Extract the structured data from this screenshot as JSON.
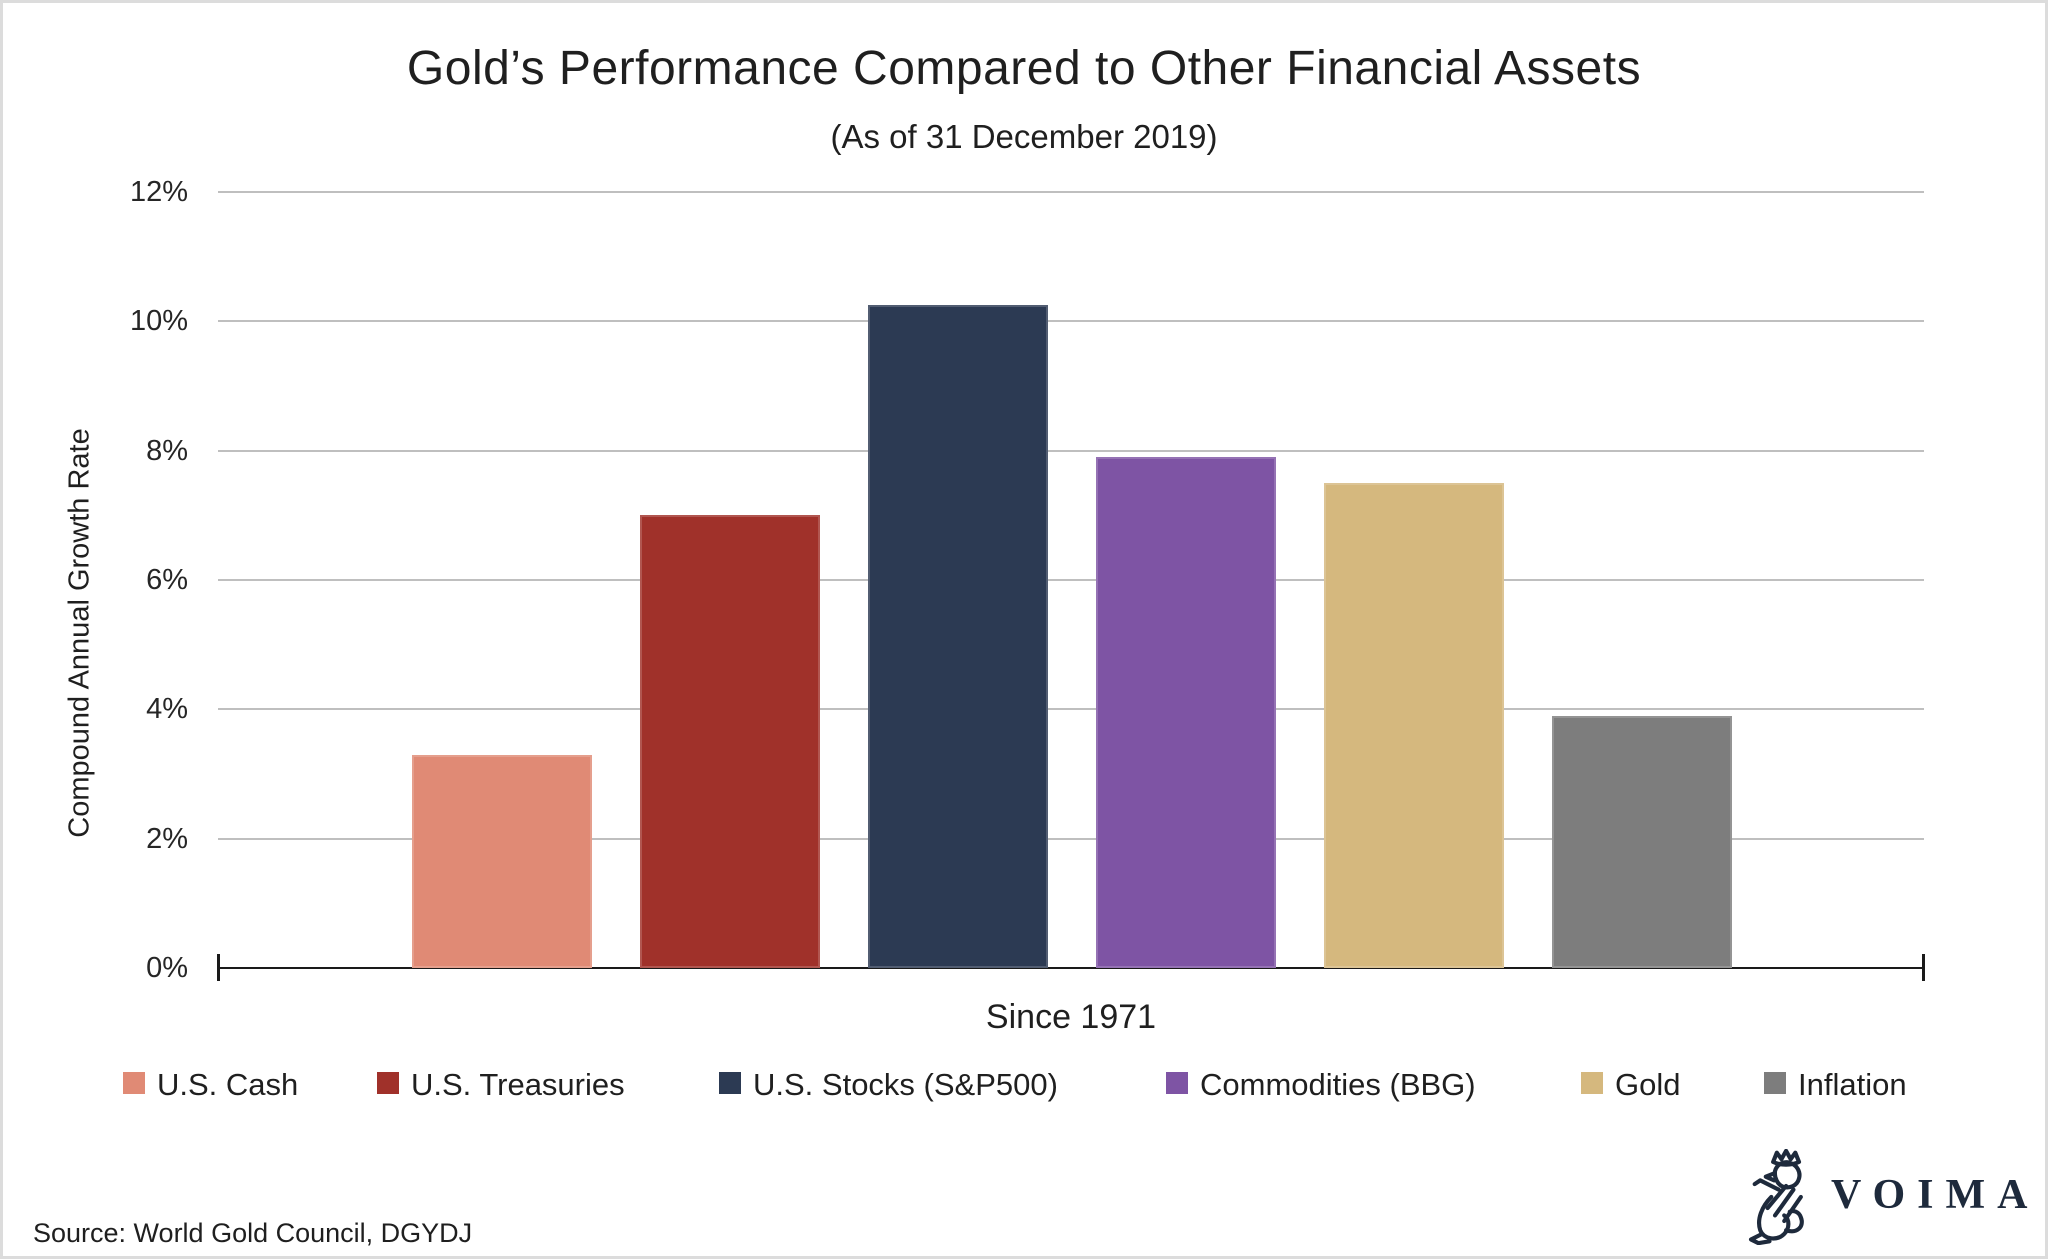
{
  "chart_data": {
    "type": "bar",
    "title": "Gold’s Performance Compared to Other Financial Assets",
    "subtitle": "(As of 31 December 2019)",
    "xlabel": "Since 1971",
    "ylabel": "Compound Annual Growth Rate",
    "ylim": [
      0,
      12
    ],
    "grid": true,
    "legend_position": "bottom",
    "yticks": [
      {
        "value": 12,
        "label": "12%"
      },
      {
        "value": 10,
        "label": "10%"
      },
      {
        "value": 8,
        "label": "8%"
      },
      {
        "value": 6,
        "label": "6%"
      },
      {
        "value": 4,
        "label": "4%"
      },
      {
        "value": 2,
        "label": "2%"
      },
      {
        "value": 0,
        "label": "0%"
      }
    ],
    "categories": [
      "U.S. Cash",
      "U.S. Treasuries",
      "U.S. Stocks (S&P500)",
      "Commodities (BBG)",
      "Gold",
      "Inflation"
    ],
    "values": [
      3.3,
      7.0,
      10.25,
      7.9,
      7.5,
      3.9
    ],
    "colors": [
      "#E08A75",
      "#A0312A",
      "#2C3A53",
      "#7E54A4",
      "#D5B87E",
      "#7D7D7D"
    ]
  },
  "colors": {
    "gridline": "#bfbfbf",
    "axis": "#1a1a1a",
    "brand_navy": "#1e2a3c"
  },
  "footer": {
    "source": "Source: World Gold Council, DGYDJ",
    "brand_wordmark": "VOIMA"
  }
}
